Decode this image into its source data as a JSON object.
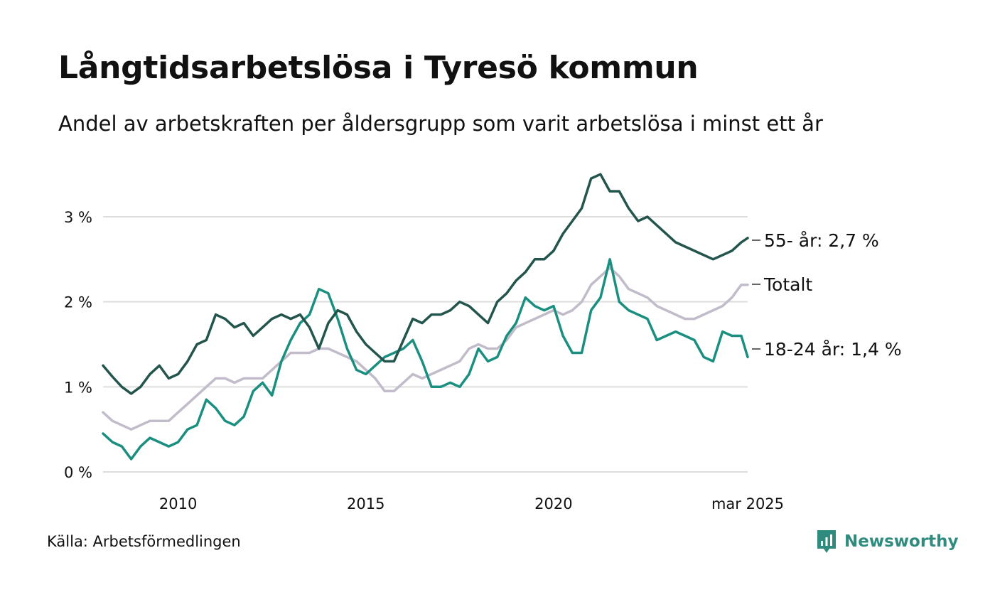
{
  "title": "Långtidsarbetslösa i Tyresö kommun",
  "subtitle": "Andel av arbetskraften per åldersgrupp som varit arbetslösa i minst ett år",
  "source": "Källa: Arbetsförmedlingen",
  "brand": "Newsworthy",
  "colors": {
    "accent": "#2e8b7e",
    "grid": "#dddddd"
  },
  "chart_data": {
    "type": "line",
    "x_unit": "year (decimal)",
    "xlim": [
      2008.0,
      2025.17
    ],
    "ylim": [
      0,
      3.6
    ],
    "y_ticks": [
      0,
      1,
      2,
      3
    ],
    "y_tick_labels": [
      "0 %",
      "1 %",
      "2 %",
      "3 %"
    ],
    "x_ticks": [
      2010,
      2015,
      2020,
      2025.17
    ],
    "x_tick_labels": [
      "2010",
      "2015",
      "2020",
      "mar 2025"
    ],
    "grid": "horizontal",
    "series": [
      {
        "name": "55- år",
        "label": "55- år: 2,7 %",
        "color": "#23554c",
        "points": [
          [
            2008.0,
            1.25
          ],
          [
            2008.25,
            1.12
          ],
          [
            2008.5,
            1.0
          ],
          [
            2008.75,
            0.92
          ],
          [
            2009.0,
            1.0
          ],
          [
            2009.25,
            1.15
          ],
          [
            2009.5,
            1.25
          ],
          [
            2009.75,
            1.1
          ],
          [
            2010.0,
            1.15
          ],
          [
            2010.25,
            1.3
          ],
          [
            2010.5,
            1.5
          ],
          [
            2010.75,
            1.55
          ],
          [
            2011.0,
            1.85
          ],
          [
            2011.25,
            1.8
          ],
          [
            2011.5,
            1.7
          ],
          [
            2011.75,
            1.75
          ],
          [
            2012.0,
            1.6
          ],
          [
            2012.25,
            1.7
          ],
          [
            2012.5,
            1.8
          ],
          [
            2012.75,
            1.85
          ],
          [
            2013.0,
            1.8
          ],
          [
            2013.25,
            1.85
          ],
          [
            2013.5,
            1.7
          ],
          [
            2013.75,
            1.45
          ],
          [
            2014.0,
            1.75
          ],
          [
            2014.25,
            1.9
          ],
          [
            2014.5,
            1.85
          ],
          [
            2014.75,
            1.65
          ],
          [
            2015.0,
            1.5
          ],
          [
            2015.25,
            1.4
          ],
          [
            2015.5,
            1.3
          ],
          [
            2015.75,
            1.3
          ],
          [
            2016.0,
            1.55
          ],
          [
            2016.25,
            1.8
          ],
          [
            2016.5,
            1.75
          ],
          [
            2016.75,
            1.85
          ],
          [
            2017.0,
            1.85
          ],
          [
            2017.25,
            1.9
          ],
          [
            2017.5,
            2.0
          ],
          [
            2017.75,
            1.95
          ],
          [
            2018.0,
            1.85
          ],
          [
            2018.25,
            1.75
          ],
          [
            2018.5,
            2.0
          ],
          [
            2018.75,
            2.1
          ],
          [
            2019.0,
            2.25
          ],
          [
            2019.25,
            2.35
          ],
          [
            2019.5,
            2.5
          ],
          [
            2019.75,
            2.5
          ],
          [
            2020.0,
            2.6
          ],
          [
            2020.25,
            2.8
          ],
          [
            2020.5,
            2.95
          ],
          [
            2020.75,
            3.1
          ],
          [
            2021.0,
            3.45
          ],
          [
            2021.25,
            3.5
          ],
          [
            2021.5,
            3.3
          ],
          [
            2021.75,
            3.3
          ],
          [
            2022.0,
            3.1
          ],
          [
            2022.25,
            2.95
          ],
          [
            2022.5,
            3.0
          ],
          [
            2022.75,
            2.9
          ],
          [
            2023.0,
            2.8
          ],
          [
            2023.25,
            2.7
          ],
          [
            2023.5,
            2.65
          ],
          [
            2023.75,
            2.6
          ],
          [
            2024.0,
            2.55
          ],
          [
            2024.25,
            2.5
          ],
          [
            2024.5,
            2.55
          ],
          [
            2024.75,
            2.6
          ],
          [
            2025.0,
            2.7
          ],
          [
            2025.17,
            2.75
          ]
        ]
      },
      {
        "name": "Totalt",
        "label": "Totalt",
        "color": "#c2bcca",
        "points": [
          [
            2008.0,
            0.7
          ],
          [
            2008.25,
            0.6
          ],
          [
            2008.5,
            0.55
          ],
          [
            2008.75,
            0.5
          ],
          [
            2009.0,
            0.55
          ],
          [
            2009.25,
            0.6
          ],
          [
            2009.5,
            0.6
          ],
          [
            2009.75,
            0.6
          ],
          [
            2010.0,
            0.7
          ],
          [
            2010.25,
            0.8
          ],
          [
            2010.5,
            0.9
          ],
          [
            2010.75,
            1.0
          ],
          [
            2011.0,
            1.1
          ],
          [
            2011.25,
            1.1
          ],
          [
            2011.5,
            1.05
          ],
          [
            2011.75,
            1.1
          ],
          [
            2012.0,
            1.1
          ],
          [
            2012.25,
            1.1
          ],
          [
            2012.5,
            1.2
          ],
          [
            2012.75,
            1.3
          ],
          [
            2013.0,
            1.4
          ],
          [
            2013.25,
            1.4
          ],
          [
            2013.5,
            1.4
          ],
          [
            2013.75,
            1.45
          ],
          [
            2014.0,
            1.45
          ],
          [
            2014.25,
            1.4
          ],
          [
            2014.5,
            1.35
          ],
          [
            2014.75,
            1.3
          ],
          [
            2015.0,
            1.2
          ],
          [
            2015.25,
            1.1
          ],
          [
            2015.5,
            0.95
          ],
          [
            2015.75,
            0.95
          ],
          [
            2016.0,
            1.05
          ],
          [
            2016.25,
            1.15
          ],
          [
            2016.5,
            1.1
          ],
          [
            2016.75,
            1.15
          ],
          [
            2017.0,
            1.2
          ],
          [
            2017.25,
            1.25
          ],
          [
            2017.5,
            1.3
          ],
          [
            2017.75,
            1.45
          ],
          [
            2018.0,
            1.5
          ],
          [
            2018.25,
            1.45
          ],
          [
            2018.5,
            1.45
          ],
          [
            2018.75,
            1.55
          ],
          [
            2019.0,
            1.7
          ],
          [
            2019.25,
            1.75
          ],
          [
            2019.5,
            1.8
          ],
          [
            2019.75,
            1.85
          ],
          [
            2020.0,
            1.9
          ],
          [
            2020.25,
            1.85
          ],
          [
            2020.5,
            1.9
          ],
          [
            2020.75,
            2.0
          ],
          [
            2021.0,
            2.2
          ],
          [
            2021.25,
            2.3
          ],
          [
            2021.5,
            2.4
          ],
          [
            2021.75,
            2.3
          ],
          [
            2022.0,
            2.15
          ],
          [
            2022.25,
            2.1
          ],
          [
            2022.5,
            2.05
          ],
          [
            2022.75,
            1.95
          ],
          [
            2023.0,
            1.9
          ],
          [
            2023.25,
            1.85
          ],
          [
            2023.5,
            1.8
          ],
          [
            2023.75,
            1.8
          ],
          [
            2024.0,
            1.85
          ],
          [
            2024.25,
            1.9
          ],
          [
            2024.5,
            1.95
          ],
          [
            2024.75,
            2.05
          ],
          [
            2025.0,
            2.2
          ],
          [
            2025.17,
            2.2
          ]
        ]
      },
      {
        "name": "18-24 år",
        "label": "18-24 år: 1,4 %",
        "color": "#1a8f80",
        "points": [
          [
            2008.0,
            0.45
          ],
          [
            2008.25,
            0.35
          ],
          [
            2008.5,
            0.3
          ],
          [
            2008.75,
            0.15
          ],
          [
            2009.0,
            0.3
          ],
          [
            2009.25,
            0.4
          ],
          [
            2009.5,
            0.35
          ],
          [
            2009.75,
            0.3
          ],
          [
            2010.0,
            0.35
          ],
          [
            2010.25,
            0.5
          ],
          [
            2010.5,
            0.55
          ],
          [
            2010.75,
            0.85
          ],
          [
            2011.0,
            0.75
          ],
          [
            2011.25,
            0.6
          ],
          [
            2011.5,
            0.55
          ],
          [
            2011.75,
            0.65
          ],
          [
            2012.0,
            0.95
          ],
          [
            2012.25,
            1.05
          ],
          [
            2012.5,
            0.9
          ],
          [
            2012.75,
            1.3
          ],
          [
            2013.0,
            1.55
          ],
          [
            2013.25,
            1.75
          ],
          [
            2013.5,
            1.85
          ],
          [
            2013.75,
            2.15
          ],
          [
            2014.0,
            2.1
          ],
          [
            2014.25,
            1.8
          ],
          [
            2014.5,
            1.45
          ],
          [
            2014.75,
            1.2
          ],
          [
            2015.0,
            1.15
          ],
          [
            2015.25,
            1.25
          ],
          [
            2015.5,
            1.35
          ],
          [
            2015.75,
            1.4
          ],
          [
            2016.0,
            1.45
          ],
          [
            2016.25,
            1.55
          ],
          [
            2016.5,
            1.3
          ],
          [
            2016.75,
            1.0
          ],
          [
            2017.0,
            1.0
          ],
          [
            2017.25,
            1.05
          ],
          [
            2017.5,
            1.0
          ],
          [
            2017.75,
            1.15
          ],
          [
            2018.0,
            1.45
          ],
          [
            2018.25,
            1.3
          ],
          [
            2018.5,
            1.35
          ],
          [
            2018.75,
            1.6
          ],
          [
            2019.0,
            1.75
          ],
          [
            2019.25,
            2.05
          ],
          [
            2019.5,
            1.95
          ],
          [
            2019.75,
            1.9
          ],
          [
            2020.0,
            1.95
          ],
          [
            2020.25,
            1.6
          ],
          [
            2020.5,
            1.4
          ],
          [
            2020.75,
            1.4
          ],
          [
            2021.0,
            1.9
          ],
          [
            2021.25,
            2.05
          ],
          [
            2021.5,
            2.5
          ],
          [
            2021.75,
            2.0
          ],
          [
            2022.0,
            1.9
          ],
          [
            2022.25,
            1.85
          ],
          [
            2022.5,
            1.8
          ],
          [
            2022.75,
            1.55
          ],
          [
            2023.0,
            1.6
          ],
          [
            2023.25,
            1.65
          ],
          [
            2023.5,
            1.6
          ],
          [
            2023.75,
            1.55
          ],
          [
            2024.0,
            1.35
          ],
          [
            2024.25,
            1.3
          ],
          [
            2024.5,
            1.65
          ],
          [
            2024.75,
            1.6
          ],
          [
            2025.0,
            1.6
          ],
          [
            2025.17,
            1.35
          ]
        ]
      }
    ]
  }
}
